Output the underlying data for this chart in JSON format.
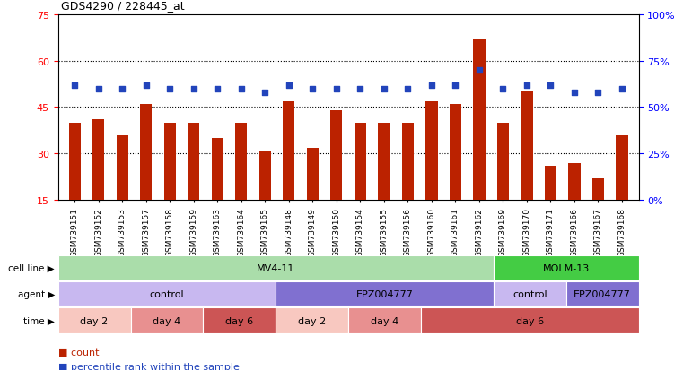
{
  "title": "GDS4290 / 228445_at",
  "samples": [
    "GSM739151",
    "GSM739152",
    "GSM739153",
    "GSM739157",
    "GSM739158",
    "GSM739159",
    "GSM739163",
    "GSM739164",
    "GSM739165",
    "GSM739148",
    "GSM739149",
    "GSM739150",
    "GSM739154",
    "GSM739155",
    "GSM739156",
    "GSM739160",
    "GSM739161",
    "GSM739162",
    "GSM739169",
    "GSM739170",
    "GSM739171",
    "GSM739166",
    "GSM739167",
    "GSM739168"
  ],
  "counts": [
    40,
    41,
    36,
    46,
    40,
    40,
    35,
    40,
    31,
    47,
    32,
    44,
    40,
    40,
    40,
    47,
    46,
    67,
    40,
    50,
    26,
    27,
    22,
    36
  ],
  "percentiles": [
    62,
    60,
    60,
    62,
    60,
    60,
    60,
    60,
    58,
    62,
    60,
    60,
    60,
    60,
    60,
    62,
    62,
    70,
    60,
    62,
    62,
    58,
    58,
    60
  ],
  "left_ylim": [
    15,
    75
  ],
  "right_ylim": [
    0,
    100
  ],
  "left_yticks": [
    15,
    30,
    45,
    60,
    75
  ],
  "right_yticks": [
    0,
    25,
    50,
    75,
    100
  ],
  "right_yticklabels": [
    "0%",
    "25%",
    "50%",
    "75%",
    "100%"
  ],
  "bar_color": "#bb2200",
  "dot_color": "#2244bb",
  "grid_values": [
    30,
    45,
    60
  ],
  "cell_line_data": [
    {
      "label": "MV4-11",
      "start": 0,
      "end": 18,
      "color": "#aaddaa"
    },
    {
      "label": "MOLM-13",
      "start": 18,
      "end": 24,
      "color": "#44cc44"
    }
  ],
  "agent_data": [
    {
      "label": "control",
      "start": 0,
      "end": 9,
      "color": "#c8b8f0"
    },
    {
      "label": "EPZ004777",
      "start": 9,
      "end": 18,
      "color": "#8070d0"
    },
    {
      "label": "control",
      "start": 18,
      "end": 21,
      "color": "#c8b8f0"
    },
    {
      "label": "EPZ004777",
      "start": 21,
      "end": 24,
      "color": "#8070d0"
    }
  ],
  "time_data": [
    {
      "label": "day 2",
      "start": 0,
      "end": 3,
      "color": "#f8c8c0"
    },
    {
      "label": "day 4",
      "start": 3,
      "end": 6,
      "color": "#e89090"
    },
    {
      "label": "day 6",
      "start": 6,
      "end": 9,
      "color": "#cc5555"
    },
    {
      "label": "day 2",
      "start": 9,
      "end": 12,
      "color": "#f8c8c0"
    },
    {
      "label": "day 4",
      "start": 12,
      "end": 15,
      "color": "#e89090"
    },
    {
      "label": "day 6",
      "start": 15,
      "end": 24,
      "color": "#cc5555"
    }
  ],
  "bg_color": "#ffffff"
}
